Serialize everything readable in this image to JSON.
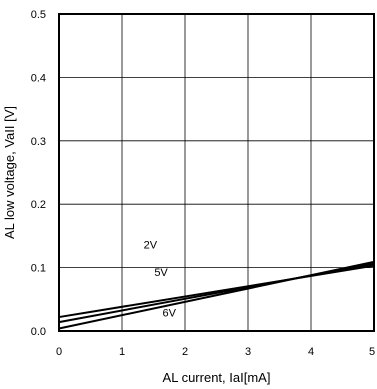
{
  "chart_data": {
    "type": "line",
    "title": "",
    "xlabel": "AL current, IaI[mA]",
    "ylabel": "AL low voltage, VaII [V]",
    "xlim": [
      0,
      5
    ],
    "ylim": [
      0,
      0.5
    ],
    "x_ticks": [
      "0",
      "1",
      "2",
      "3",
      "4",
      "5"
    ],
    "y_ticks": [
      "0.0",
      "0.1",
      "0.2",
      "0.3",
      "0.4",
      "0.5"
    ],
    "grid": true,
    "series": [
      {
        "name": "2V",
        "x": [
          0,
          5
        ],
        "y": [
          0.022,
          0.103
        ]
      },
      {
        "name": "5V",
        "x": [
          0,
          5
        ],
        "y": [
          0.014,
          0.106
        ]
      },
      {
        "name": "6V",
        "x": [
          0,
          5
        ],
        "y": [
          0.004,
          0.109
        ]
      }
    ],
    "labels": [
      {
        "text": "2V",
        "x": 1.45,
        "y": 0.13
      },
      {
        "text": "5V",
        "x": 1.62,
        "y": 0.087
      },
      {
        "text": "6V",
        "x": 1.75,
        "y": 0.023
      }
    ]
  }
}
